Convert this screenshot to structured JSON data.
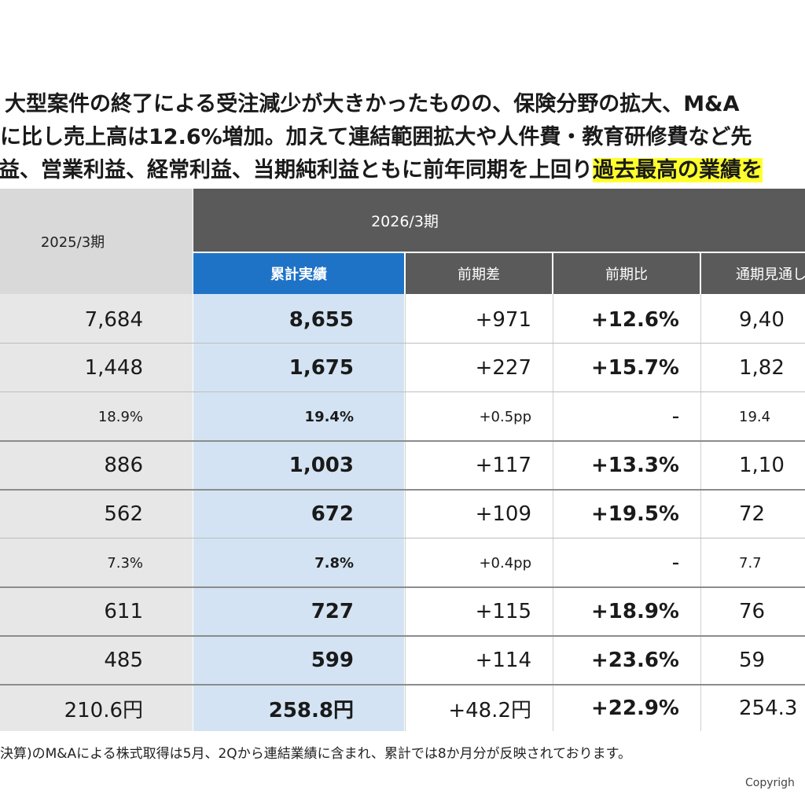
{
  "intro": {
    "line1": "大型案件の終了による受注減少が大きかったものの、保険分野の拡大、M&A",
    "line2": "に比し売上高は12.6%増加。加えて連結範囲拡大や人件費・教育研修費など先",
    "line3_normal": "益、営業利益、経常利益、当期純利益ともに前年同期を上回り",
    "line3_highlight": "過去最高の業績を"
  },
  "table": {
    "header_prev": "2025/3期",
    "header_2026": "2026/3期",
    "sub_cumulative": "累計実績",
    "sub_diff": "前期差",
    "sub_ratio": "前期比",
    "sub_forecast": "通期見通し",
    "rows": [
      {
        "prev": "7,684",
        "cum": "8,655",
        "diff": "+971",
        "ratio": "+12.6%",
        "fc": "9,40"
      },
      {
        "prev": "1,448",
        "cum": "1,675",
        "diff": "+227",
        "ratio": "+15.7%",
        "fc": "1,82"
      },
      {
        "prev": "18.9%",
        "cum": "19.4%",
        "diff": "+0.5pp",
        "ratio": "–",
        "fc": "19.4"
      },
      {
        "prev": "886",
        "cum": "1,003",
        "diff": "+117",
        "ratio": "+13.3%",
        "fc": "1,10"
      },
      {
        "prev": "562",
        "cum": "672",
        "diff": "+109",
        "ratio": "+19.5%",
        "fc": "72"
      },
      {
        "prev": "7.3%",
        "cum": "7.8%",
        "diff": "+0.4pp",
        "ratio": "–",
        "fc": "7.7"
      },
      {
        "prev": "611",
        "cum": "727",
        "diff": "+115",
        "ratio": "+18.9%",
        "fc": "76"
      },
      {
        "prev": "485",
        "cum": "599",
        "diff": "+114",
        "ratio": "+23.6%",
        "fc": "59"
      },
      {
        "prev": "210.6円",
        "cum": "258.8円",
        "diff": "+48.2円",
        "ratio": "+22.9%",
        "fc": "254.3"
      }
    ]
  },
  "footnote": "決算)のM&Aによる株式取得は5月、2Qから連結業績に含まれ、累計では8か月分が反映されております。",
  "copyright": "Copyrigh",
  "colors": {
    "header_dark": "#5a5a5a",
    "header_blue": "#1f73c7",
    "cumulative_bg": "#d3e3f3",
    "prev_bg": "#e7e7e7",
    "highlight": "#ffff2e"
  }
}
